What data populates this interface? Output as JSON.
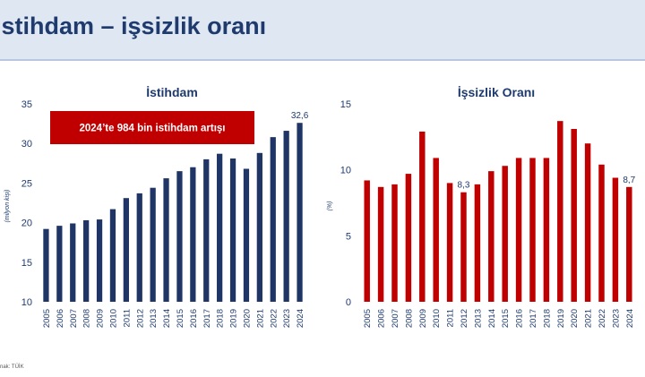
{
  "page": {
    "title": "istihdam – işsizlik oranı",
    "source": "nak: TÜİK"
  },
  "chart_data": [
    {
      "type": "bar",
      "title": "İstihdam",
      "ylabel": "(milyon kişi)",
      "ylim": [
        10,
        35
      ],
      "yticks": [
        "10",
        "15",
        "20",
        "25",
        "30",
        "35"
      ],
      "grid": false,
      "color": "#1f3565",
      "categories": [
        "2005",
        "2006",
        "2007",
        "2008",
        "2009",
        "2010",
        "2011",
        "2012",
        "2013",
        "2014",
        "2015",
        "2016",
        "2017",
        "2018",
        "2019",
        "2020",
        "2021",
        "2022",
        "2023",
        "2024"
      ],
      "values": [
        19.2,
        19.6,
        19.9,
        20.3,
        20.4,
        21.7,
        23.1,
        23.7,
        24.4,
        25.6,
        26.5,
        27.0,
        28.0,
        28.7,
        28.1,
        26.8,
        28.8,
        30.8,
        31.6,
        32.6
      ],
      "data_labels": [
        {
          "category": "2024",
          "text": "32,6"
        }
      ],
      "annotation": {
        "text": "2024’te 984 bin istihdam artışı",
        "color": "#c00000"
      }
    },
    {
      "type": "bar",
      "title": "İşsizlik Oranı",
      "ylabel": "(%)",
      "ylim": [
        0,
        15
      ],
      "yticks": [
        "0",
        "5",
        "10",
        "15"
      ],
      "grid": false,
      "color": "#c00000",
      "categories": [
        "2005",
        "2006",
        "2007",
        "2008",
        "2009",
        "2010",
        "2011",
        "2012",
        "2013",
        "2014",
        "2015",
        "2016",
        "2017",
        "2018",
        "2019",
        "2020",
        "2021",
        "2022",
        "2023",
        "2024"
      ],
      "values": [
        9.2,
        8.7,
        8.9,
        9.7,
        12.9,
        10.9,
        9.0,
        8.3,
        8.9,
        9.9,
        10.3,
        10.9,
        10.9,
        10.9,
        13.7,
        13.1,
        12.0,
        10.4,
        9.4,
        8.7
      ],
      "data_labels": [
        {
          "category": "2012",
          "text": "8,3"
        },
        {
          "category": "2024",
          "text": "8,7"
        }
      ]
    }
  ]
}
